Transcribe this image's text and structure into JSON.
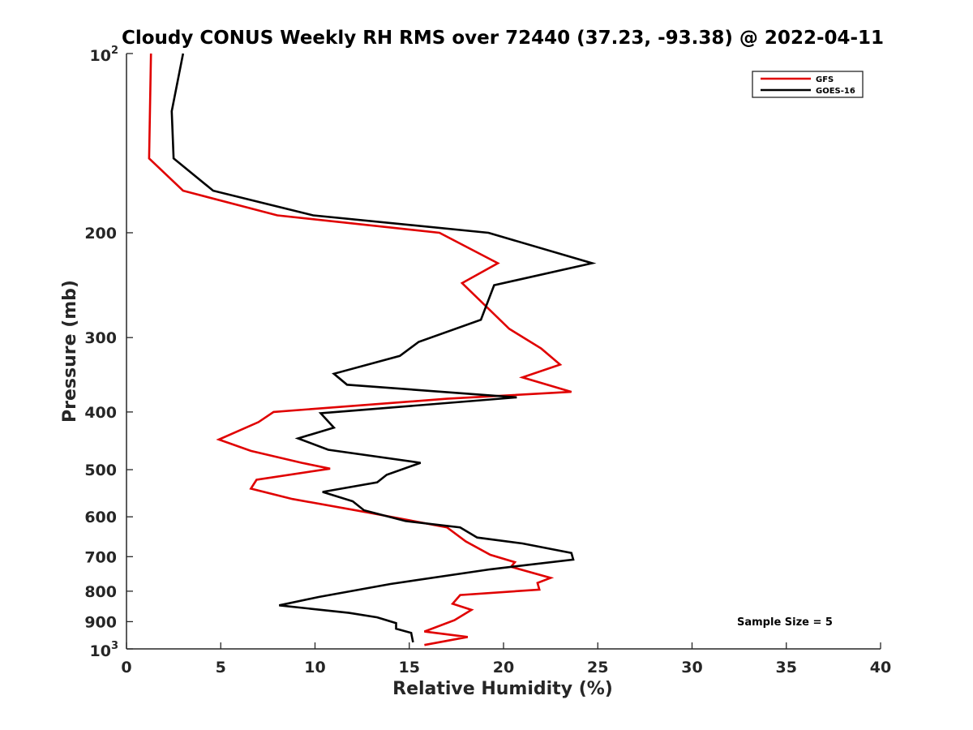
{
  "chart_data": {
    "type": "line",
    "title": "Cloudy CONUS Weekly RH RMS over 72440 (37.23, -93.38) @ 2022-04-11",
    "xlabel": "Relative Humidity (%)",
    "ylabel": "Pressure (mb)",
    "xlim": [
      0,
      40
    ],
    "ylim": [
      100,
      1000
    ],
    "y_scale": "log",
    "y_reversed": true,
    "grid": false,
    "legend_position": "top-right",
    "x_ticks": [
      0,
      5,
      10,
      15,
      20,
      25,
      30,
      35,
      40
    ],
    "x_tick_labels": [
      "0",
      "5",
      "10",
      "15",
      "20",
      "25",
      "30",
      "35",
      "40"
    ],
    "y_ticks": [
      200,
      300,
      400,
      500,
      600,
      700,
      800,
      900
    ],
    "y_tick_labels": [
      "200",
      "300",
      "400",
      "500",
      "600",
      "700",
      "800",
      "900"
    ],
    "y_end_labels": [
      {
        "value": 100,
        "base": "10",
        "exp": "2"
      },
      {
        "value": 1000,
        "base": "10",
        "exp": "3"
      }
    ],
    "annotation": "Sample Size = 5",
    "series": [
      {
        "name": "GFS",
        "color": "#e00000",
        "points": [
          [
            1.3,
            100
          ],
          [
            1.2,
            150
          ],
          [
            3.0,
            170
          ],
          [
            8.0,
            187
          ],
          [
            16.6,
            200
          ],
          [
            19.7,
            225
          ],
          [
            17.8,
            243
          ],
          [
            20.3,
            290
          ],
          [
            22.0,
            313
          ],
          [
            23.0,
            333
          ],
          [
            21.0,
            350
          ],
          [
            23.6,
            370
          ],
          [
            17.0,
            380
          ],
          [
            7.8,
            400
          ],
          [
            7.0,
            416
          ],
          [
            4.9,
            445
          ],
          [
            6.6,
            465
          ],
          [
            9.3,
            487
          ],
          [
            10.8,
            498
          ],
          [
            6.9,
            520
          ],
          [
            6.6,
            538
          ],
          [
            8.8,
            560
          ],
          [
            12.8,
            590
          ],
          [
            17.0,
            625
          ],
          [
            18.0,
            660
          ],
          [
            19.3,
            695
          ],
          [
            20.6,
            715
          ],
          [
            20.4,
            728
          ],
          [
            22.5,
            760
          ],
          [
            21.8,
            775
          ],
          [
            21.9,
            795
          ],
          [
            17.7,
            812
          ],
          [
            17.3,
            840
          ],
          [
            18.3,
            860
          ],
          [
            17.4,
            895
          ],
          [
            15.8,
            935
          ],
          [
            18.1,
            955
          ],
          [
            15.8,
            985
          ]
        ]
      },
      {
        "name": "GOES-16",
        "color": "#000000",
        "points": [
          [
            3.0,
            100
          ],
          [
            2.4,
            125
          ],
          [
            2.5,
            150
          ],
          [
            4.6,
            170
          ],
          [
            9.9,
            187
          ],
          [
            19.2,
            200
          ],
          [
            24.7,
            225
          ],
          [
            19.5,
            245
          ],
          [
            18.8,
            280
          ],
          [
            15.5,
            305
          ],
          [
            14.5,
            322
          ],
          [
            11.0,
            345
          ],
          [
            11.7,
            360
          ],
          [
            20.7,
            378
          ],
          [
            10.3,
            402
          ],
          [
            11.0,
            425
          ],
          [
            9.1,
            443
          ],
          [
            10.7,
            463
          ],
          [
            15.6,
            487
          ],
          [
            13.8,
            510
          ],
          [
            13.3,
            525
          ],
          [
            10.4,
            545
          ],
          [
            12.0,
            565
          ],
          [
            12.6,
            585
          ],
          [
            14.8,
            610
          ],
          [
            17.7,
            625
          ],
          [
            18.6,
            650
          ],
          [
            21.0,
            665
          ],
          [
            23.6,
            690
          ],
          [
            23.7,
            708
          ],
          [
            19.3,
            735
          ],
          [
            14.0,
            778
          ],
          [
            10.2,
            818
          ],
          [
            8.1,
            845
          ],
          [
            11.8,
            870
          ],
          [
            13.3,
            885
          ],
          [
            14.3,
            905
          ],
          [
            14.3,
            925
          ],
          [
            15.1,
            940
          ],
          [
            15.2,
            975
          ]
        ]
      }
    ]
  }
}
